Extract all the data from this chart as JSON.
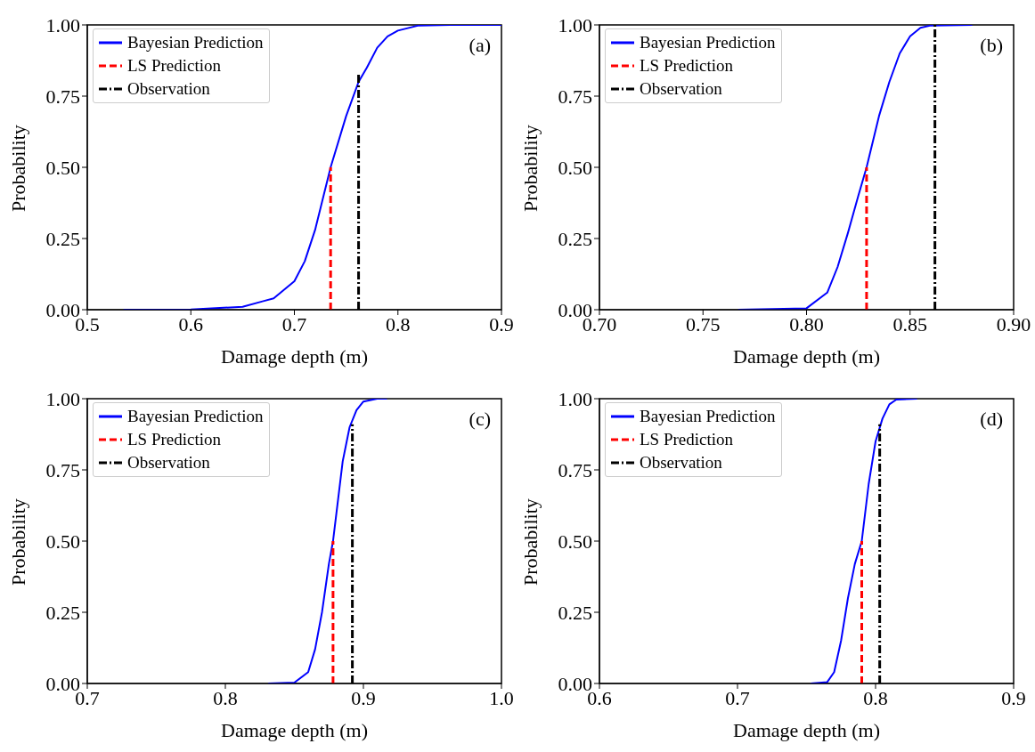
{
  "chart_data": [
    {
      "type": "line",
      "xlabel": "Damage depth (m)",
      "ylabel": "Probability",
      "annotations": [
        "(a)"
      ],
      "xlim": [
        0.5,
        0.9
      ],
      "xticks": [
        0.5,
        0.6,
        0.7,
        0.8,
        0.9
      ],
      "ylim": [
        0,
        1
      ],
      "yticks": [
        {
          "value": 0,
          "label": "0.00"
        },
        {
          "value": 0.25,
          "label": "0.25"
        },
        {
          "value": 0.5,
          "label": "0.50"
        },
        {
          "value": 0.75,
          "label": "0.75"
        },
        {
          "value": 1,
          "label": "1.00"
        }
      ],
      "grid": false,
      "legend": "top left",
      "marker": "none",
      "series": [
        {
          "name": "Bayesian Prediction",
          "color": "#0000ff",
          "line_style": "solid",
          "x": [
            0.535,
            0.6,
            0.65,
            0.67,
            0.68,
            0.7,
            0.71,
            0.72,
            0.735,
            0.75,
            0.762,
            0.77,
            0.78,
            0.79,
            0.8,
            0.82,
            0.85,
            0.9
          ],
          "values": [
            0,
            0.001,
            0.01,
            0.03,
            0.04,
            0.1,
            0.17,
            0.28,
            0.5,
            0.68,
            0.8,
            0.85,
            0.92,
            0.96,
            0.98,
            0.998,
            1,
            1
          ]
        },
        {
          "name": "LS Prediction",
          "color": "#ff0000",
          "line_style": "dashed",
          "x": [
            0.735,
            0.735
          ],
          "values": [
            0,
            0.5
          ]
        },
        {
          "name": "Observation",
          "color": "#000000",
          "line_style": "dashdot",
          "x": [
            0.762,
            0.762
          ],
          "values": [
            0,
            0.83
          ]
        }
      ]
    },
    {
      "type": "line",
      "xlabel": "Damage depth (m)",
      "ylabel": "Probability",
      "annotations": [
        "(b)"
      ],
      "xlim": [
        0.7,
        0.9
      ],
      "xticks": [
        {
          "value": 0.7,
          "label": "0.70"
        },
        {
          "value": 0.75,
          "label": "0.75"
        },
        {
          "value": 0.8,
          "label": "0.80"
        },
        {
          "value": 0.85,
          "label": "0.85"
        },
        {
          "value": 0.9,
          "label": "0.90"
        }
      ],
      "ylim": [
        0,
        1
      ],
      "yticks": [
        {
          "value": 0,
          "label": "0.00"
        },
        {
          "value": 0.25,
          "label": "0.25"
        },
        {
          "value": 0.5,
          "label": "0.50"
        },
        {
          "value": 0.75,
          "label": "0.75"
        },
        {
          "value": 1,
          "label": "1.00"
        }
      ],
      "grid": false,
      "legend": "top left",
      "marker": "none",
      "series": [
        {
          "name": "Bayesian Prediction",
          "color": "#0000ff",
          "line_style": "solid",
          "x": [
            0.767,
            0.8,
            0.81,
            0.815,
            0.82,
            0.825,
            0.829,
            0.835,
            0.84,
            0.845,
            0.85,
            0.855,
            0.86,
            0.88
          ],
          "values": [
            0,
            0.005,
            0.06,
            0.15,
            0.27,
            0.4,
            0.5,
            0.68,
            0.8,
            0.9,
            0.96,
            0.99,
            0.998,
            1
          ]
        },
        {
          "name": "LS Prediction",
          "color": "#ff0000",
          "line_style": "dashed",
          "x": [
            0.829,
            0.829
          ],
          "values": [
            0,
            0.5
          ]
        },
        {
          "name": "Observation",
          "color": "#000000",
          "line_style": "dashdot",
          "x": [
            0.862,
            0.862
          ],
          "values": [
            0,
            1
          ]
        }
      ]
    },
    {
      "type": "line",
      "xlabel": "Damage depth (m)",
      "ylabel": "Probability",
      "annotations": [
        "(c)"
      ],
      "xlim": [
        0.7,
        1.0
      ],
      "xticks": [
        0.7,
        0.8,
        0.9,
        {
          "value": 1.0,
          "label": "1.0"
        }
      ],
      "ylim": [
        0,
        1
      ],
      "yticks": [
        {
          "value": 0,
          "label": "0.00"
        },
        {
          "value": 0.25,
          "label": "0.25"
        },
        {
          "value": 0.5,
          "label": "0.50"
        },
        {
          "value": 0.75,
          "label": "0.75"
        },
        {
          "value": 1,
          "label": "1.00"
        }
      ],
      "grid": false,
      "legend": "top left",
      "marker": "none",
      "series": [
        {
          "name": "Bayesian Prediction",
          "color": "#0000ff",
          "line_style": "solid",
          "x": [
            0.831,
            0.85,
            0.86,
            0.865,
            0.87,
            0.875,
            0.878,
            0.88,
            0.885,
            0.89,
            0.895,
            0.9,
            0.91,
            0.917
          ],
          "values": [
            0,
            0.003,
            0.04,
            0.12,
            0.25,
            0.42,
            0.5,
            0.58,
            0.78,
            0.9,
            0.96,
            0.99,
            1,
            1
          ]
        },
        {
          "name": "LS Prediction",
          "color": "#ff0000",
          "line_style": "dashed",
          "x": [
            0.878,
            0.878
          ],
          "values": [
            0,
            0.5
          ]
        },
        {
          "name": "Observation",
          "color": "#000000",
          "line_style": "dashdot",
          "x": [
            0.892,
            0.892
          ],
          "values": [
            0,
            0.91
          ]
        }
      ]
    },
    {
      "type": "line",
      "xlabel": "Damage depth (m)",
      "ylabel": "Probability",
      "annotations": [
        "(d)"
      ],
      "xlim": [
        0.6,
        0.9
      ],
      "xticks": [
        0.6,
        0.7,
        0.8,
        0.9
      ],
      "ylim": [
        0,
        1
      ],
      "yticks": [
        {
          "value": 0,
          "label": "0.00"
        },
        {
          "value": 0.25,
          "label": "0.25"
        },
        {
          "value": 0.5,
          "label": "0.50"
        },
        {
          "value": 0.75,
          "label": "0.75"
        },
        {
          "value": 1,
          "label": "1.00"
        }
      ],
      "grid": false,
      "legend": "top left",
      "marker": "none",
      "series": [
        {
          "name": "Bayesian Prediction",
          "color": "#0000ff",
          "line_style": "solid",
          "x": [
            0.753,
            0.765,
            0.77,
            0.775,
            0.78,
            0.785,
            0.79,
            0.795,
            0.8,
            0.805,
            0.81,
            0.815,
            0.83
          ],
          "values": [
            0,
            0.005,
            0.04,
            0.15,
            0.3,
            0.42,
            0.5,
            0.7,
            0.85,
            0.93,
            0.98,
            0.997,
            1
          ]
        },
        {
          "name": "LS Prediction",
          "color": "#ff0000",
          "line_style": "dashed",
          "x": [
            0.79,
            0.79
          ],
          "values": [
            0,
            0.5
          ]
        },
        {
          "name": "Observation",
          "color": "#000000",
          "line_style": "dashdot",
          "x": [
            0.803,
            0.803
          ],
          "values": [
            0,
            0.91
          ]
        }
      ]
    }
  ]
}
